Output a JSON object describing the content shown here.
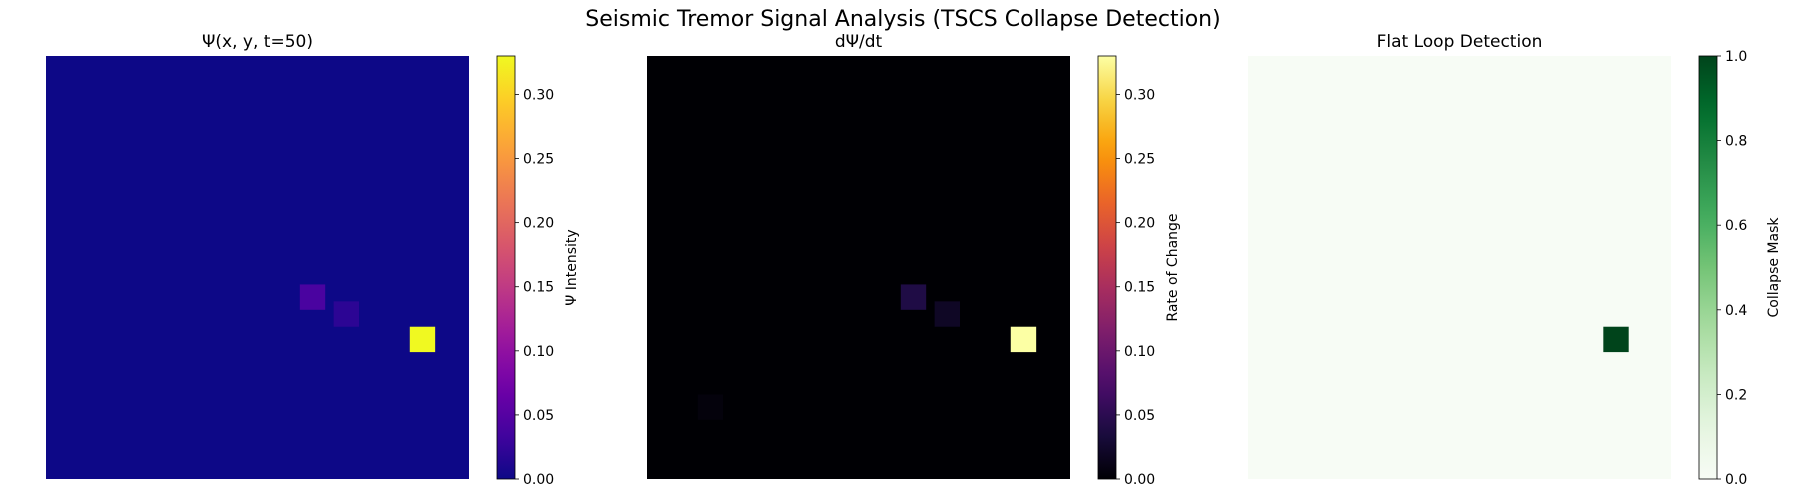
{
  "figure": {
    "suptitle": "Seismic Tremor Signal Analysis (TSCS Collapse Detection)"
  },
  "chart_data": [
    {
      "type": "heatmap",
      "title": "Ψ(x, y, t=50)",
      "colormap": "plasma",
      "colorbar_label": "Ψ Intensity",
      "vmin": 0.0,
      "vmax": 0.33,
      "colorbar_ticks": [
        "0.00",
        "0.05",
        "0.10",
        "0.15",
        "0.20",
        "0.25",
        "0.30"
      ],
      "colorbar_tick_values": [
        0.0,
        0.05,
        0.1,
        0.15,
        0.2,
        0.25,
        0.3
      ],
      "grid_size": 50,
      "axis": "off",
      "background_value": 0.0,
      "hotspots": [
        {
          "row": 27,
          "col": 30,
          "value": 0.04
        },
        {
          "row": 29,
          "col": 34,
          "value": 0.02
        },
        {
          "row": 32,
          "col": 43,
          "value": 0.33
        }
      ]
    },
    {
      "type": "heatmap",
      "title": "dΨ/dt",
      "colormap": "inferno",
      "colorbar_label": "Rate of Change",
      "vmin": 0.0,
      "vmax": 0.33,
      "colorbar_ticks": [
        "0.00",
        "0.05",
        "0.10",
        "0.15",
        "0.20",
        "0.25",
        "0.30"
      ],
      "colorbar_tick_values": [
        0.0,
        0.05,
        0.1,
        0.15,
        0.2,
        0.25,
        0.3
      ],
      "grid_size": 50,
      "axis": "off",
      "background_value": 0.0,
      "hotspots": [
        {
          "row": 27,
          "col": 30,
          "value": 0.04
        },
        {
          "row": 29,
          "col": 34,
          "value": 0.02
        },
        {
          "row": 32,
          "col": 43,
          "value": 0.33
        },
        {
          "row": 40,
          "col": 6,
          "value": 0.005
        }
      ]
    },
    {
      "type": "heatmap",
      "title": "Flat Loop Detection",
      "colormap": "Greens",
      "colorbar_label": "Collapse Mask",
      "vmin": 0.0,
      "vmax": 1.0,
      "colorbar_ticks": [
        "0.0",
        "0.2",
        "0.4",
        "0.6",
        "0.8",
        "1.0"
      ],
      "colorbar_tick_values": [
        0.0,
        0.2,
        0.4,
        0.6,
        0.8,
        1.0
      ],
      "grid_size": 50,
      "axis": "off",
      "background_value": 0.0,
      "hotspots": [
        {
          "row": 32,
          "col": 42,
          "value": 1.0
        }
      ]
    }
  ]
}
